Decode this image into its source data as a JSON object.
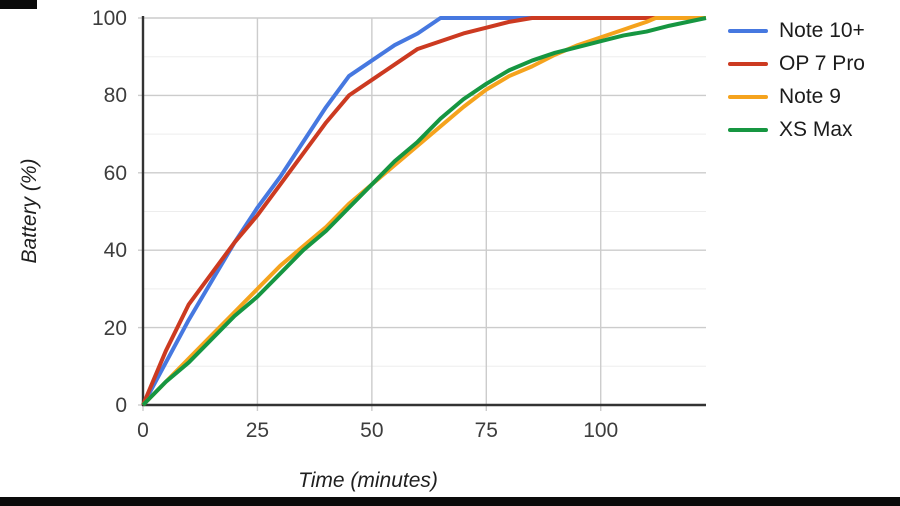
{
  "page": {
    "background_color": "#ffffff",
    "letterbox_color": "#0a0a0a"
  },
  "chart_data": {
    "type": "line",
    "title": "",
    "xlabel": "Time (minutes)",
    "ylabel": "Battery (%)",
    "xlim": [
      0,
      123
    ],
    "ylim": [
      0,
      100
    ],
    "x_ticks": [
      0,
      25,
      50,
      75,
      100
    ],
    "y_ticks": [
      0,
      20,
      40,
      60,
      80,
      100
    ],
    "y_minor_gridlines": [
      10,
      30,
      50,
      70,
      90
    ],
    "grid": "on",
    "legend_position": "right",
    "colors": {
      "axis_line": "#333333",
      "major_gridline": "#cccccc",
      "minor_gridline": "#ededed",
      "tick_text": "#3d3d3d",
      "label_text": "#1f1f1f"
    },
    "series": [
      {
        "name": "Note 10+",
        "color": "#4678e0",
        "points": [
          [
            0,
            0
          ],
          [
            5,
            11
          ],
          [
            10,
            22
          ],
          [
            15,
            32
          ],
          [
            20,
            42
          ],
          [
            25,
            51
          ],
          [
            30,
            59
          ],
          [
            35,
            68
          ],
          [
            40,
            77
          ],
          [
            45,
            85
          ],
          [
            50,
            89
          ],
          [
            55,
            93
          ],
          [
            60,
            96
          ],
          [
            65,
            100
          ],
          [
            123,
            100
          ]
        ]
      },
      {
        "name": "OP 7 Pro",
        "color": "#cc3a21",
        "points": [
          [
            0,
            0
          ],
          [
            5,
            14
          ],
          [
            10,
            26
          ],
          [
            15,
            34
          ],
          [
            20,
            42
          ],
          [
            25,
            49
          ],
          [
            30,
            57
          ],
          [
            35,
            65
          ],
          [
            40,
            73
          ],
          [
            45,
            80
          ],
          [
            50,
            84
          ],
          [
            55,
            88
          ],
          [
            60,
            92
          ],
          [
            65,
            94
          ],
          [
            70,
            96
          ],
          [
            75,
            97.5
          ],
          [
            80,
            99
          ],
          [
            85,
            100
          ],
          [
            123,
            100
          ]
        ]
      },
      {
        "name": "Note 9",
        "color": "#f5a31d",
        "points": [
          [
            0,
            0
          ],
          [
            5,
            6
          ],
          [
            10,
            12
          ],
          [
            15,
            18
          ],
          [
            20,
            24
          ],
          [
            25,
            30
          ],
          [
            30,
            36
          ],
          [
            35,
            41
          ],
          [
            40,
            46
          ],
          [
            45,
            52
          ],
          [
            50,
            57
          ],
          [
            55,
            62
          ],
          [
            60,
            67
          ],
          [
            65,
            72
          ],
          [
            70,
            77
          ],
          [
            75,
            81.5
          ],
          [
            80,
            85
          ],
          [
            85,
            87.5
          ],
          [
            90,
            90.5
          ],
          [
            95,
            93
          ],
          [
            100,
            95
          ],
          [
            105,
            97
          ],
          [
            110,
            99
          ],
          [
            112,
            100
          ],
          [
            123,
            100
          ]
        ]
      },
      {
        "name": "XS Max",
        "color": "#169641",
        "points": [
          [
            0,
            0
          ],
          [
            5,
            6
          ],
          [
            10,
            11
          ],
          [
            15,
            17
          ],
          [
            20,
            23
          ],
          [
            25,
            28
          ],
          [
            30,
            34
          ],
          [
            35,
            40
          ],
          [
            40,
            45
          ],
          [
            45,
            51
          ],
          [
            50,
            57
          ],
          [
            55,
            63
          ],
          [
            60,
            68
          ],
          [
            65,
            74
          ],
          [
            70,
            79
          ],
          [
            75,
            83
          ],
          [
            80,
            86.5
          ],
          [
            85,
            89
          ],
          [
            90,
            91
          ],
          [
            95,
            92.5
          ],
          [
            100,
            94
          ],
          [
            105,
            95.5
          ],
          [
            110,
            96.5
          ],
          [
            115,
            98
          ],
          [
            123,
            100
          ]
        ]
      }
    ]
  }
}
